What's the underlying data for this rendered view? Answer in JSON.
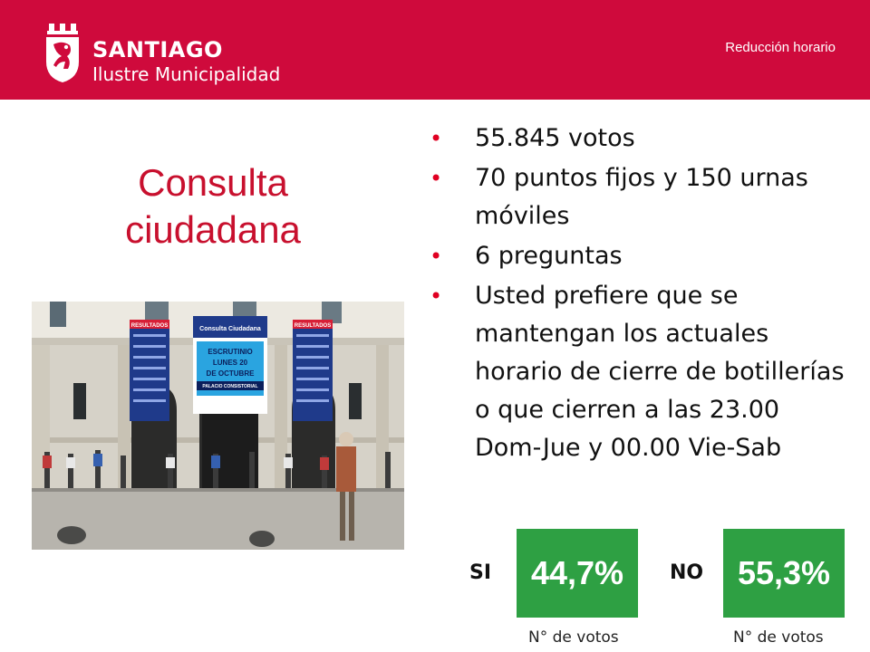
{
  "header": {
    "logo_title": "SANTIAGO",
    "logo_subtitle": "Ilustre Municipalidad",
    "topic": "Reducción horario"
  },
  "slide": {
    "title_line1": "Consulta",
    "title_line2": "ciudadana"
  },
  "bullets": [
    "55.845 votos",
    "70 puntos fijos y 150 urnas móviles",
    "6 preguntas",
    "Usted prefiere que se mantengan los actuales horario de cierre de botillerías o que cierren a las 23.00 Dom-Jue y 00.00 Vie-Sab"
  ],
  "photo": {
    "banner_left": "RESULTADOS",
    "banner_right": "RESULTADOS",
    "center_sign_title": "Consulta Ciudadana",
    "center_line1": "ESCRUTINIO",
    "center_line2": "LUNES 20",
    "center_line3": "DE OCTUBRE",
    "center_line4": "PALACIO CONSISTORIAL"
  },
  "results": {
    "si": {
      "label": "SI",
      "value": "44,7%",
      "caption": "N° de votos"
    },
    "no": {
      "label": "NO",
      "value": "55,3%",
      "caption": "N° de votos"
    }
  },
  "colors": {
    "header_red": "#cf0a3c",
    "title_red": "#c8102e",
    "bullet_red": "#e00022",
    "result_green": "#2ea043"
  }
}
